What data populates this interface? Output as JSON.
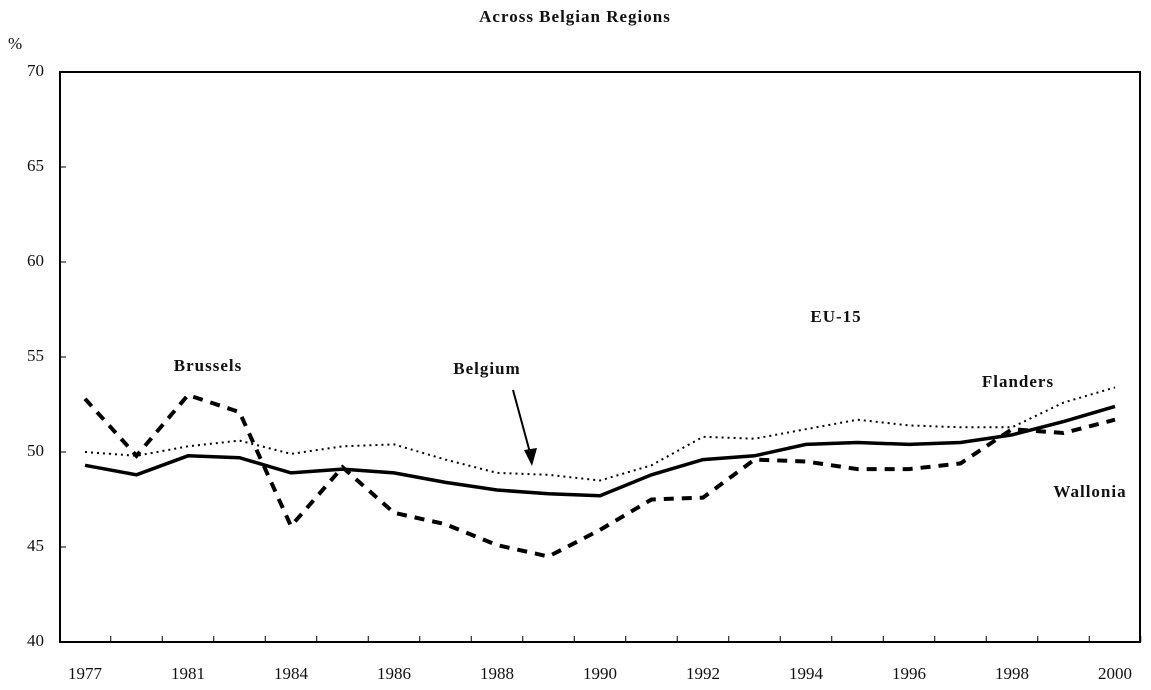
{
  "chart_data": {
    "type": "line",
    "title": "Across Belgian Regions",
    "y_unit": "%",
    "categories": [
      "1977",
      null,
      "1981",
      null,
      "1984",
      null,
      "1986",
      null,
      "1988",
      null,
      "1990",
      null,
      "1992",
      null,
      "1994",
      null,
      "1996",
      null,
      "1998",
      null,
      "2000"
    ],
    "series": [
      {
        "name": "Belgium",
        "color": "#000000",
        "style": "solid",
        "values": [
          49.3,
          48.8,
          49.8,
          49.7,
          48.9,
          49.1,
          48.9,
          48.4,
          48.0,
          47.8,
          47.7,
          48.8,
          49.6,
          49.8,
          50.4,
          50.5,
          50.4,
          50.5,
          50.9,
          51.6,
          52.4
        ]
      },
      {
        "name": "Flanders",
        "color": "#000000",
        "style": "dotted",
        "values": [
          50.0,
          49.8,
          50.3,
          50.6,
          49.9,
          50.3,
          50.4,
          49.6,
          48.9,
          48.8,
          48.5,
          49.3,
          50.8,
          50.7,
          51.2,
          51.7,
          51.4,
          51.3,
          51.3,
          52.6,
          53.4
        ]
      },
      {
        "name": "Wallonia",
        "color": "#000000",
        "style": "dashed",
        "values": [
          52.8,
          49.8,
          53.0,
          52.1,
          46.1,
          49.2,
          46.8,
          46.2,
          45.1,
          44.5,
          45.9,
          47.5,
          47.6,
          49.6,
          49.5,
          49.1,
          49.1,
          49.4,
          51.2,
          51.0,
          51.7
        ]
      }
    ],
    "annotations": [
      "Brussels",
      "EU-15"
    ],
    "ylim": [
      40,
      70
    ],
    "yticks": [
      40,
      45,
      50,
      55,
      60,
      65,
      70
    ],
    "grid": false
  }
}
